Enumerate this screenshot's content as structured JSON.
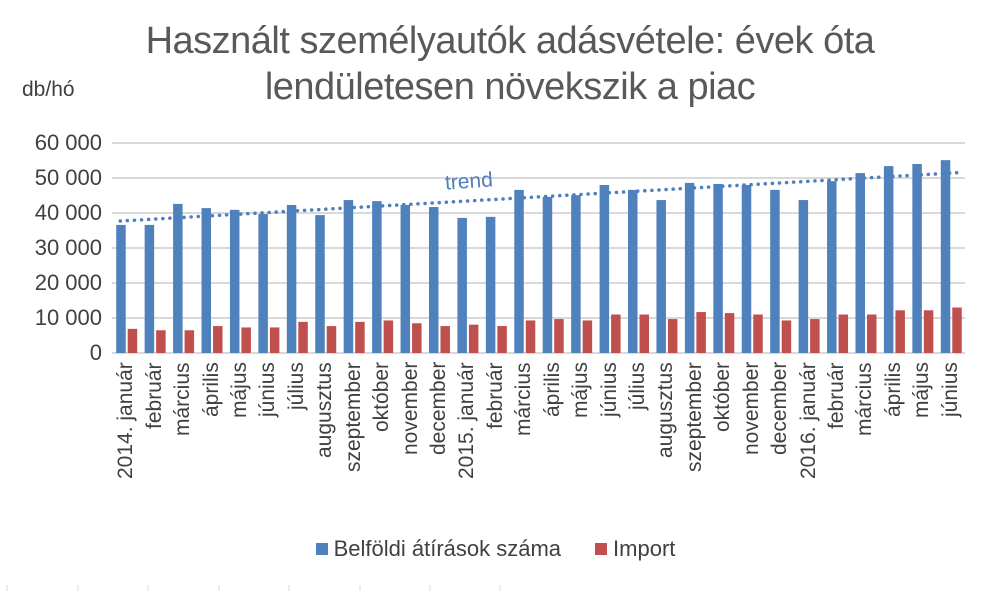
{
  "chart_data": {
    "type": "bar",
    "title": "Használt személyautók adásvétele: évek óta lendületesen növekszik a piac",
    "title_lines": [
      "Használt személyautók adásvétele: évek óta",
      "lendületesen növekszik a piac"
    ],
    "ylabel": "db/hó",
    "xlabel": "",
    "ylim": [
      0,
      60000
    ],
    "yticks": [
      "0",
      "10 000",
      "20 000",
      "30 000",
      "40 000",
      "50 000",
      "60 000"
    ],
    "ytick_values": [
      0,
      10000,
      20000,
      30000,
      40000,
      50000,
      60000
    ],
    "grid": true,
    "legend_position": "bottom",
    "categories": [
      "2014. január",
      "február",
      "március",
      "április",
      "május",
      "június",
      "július",
      "augusztus",
      "szeptember",
      "október",
      "november",
      "december",
      "2015. január",
      "február",
      "március",
      "április",
      "május",
      "június",
      "július",
      "augusztus",
      "szeptember",
      "október",
      "november",
      "december",
      "2016. január",
      "február",
      "március",
      "április",
      "május",
      "június"
    ],
    "series": [
      {
        "name": "Belföldi átírások száma",
        "color": "#4f81bd",
        "values": [
          36600,
          36600,
          42600,
          41400,
          40900,
          39700,
          42300,
          39400,
          43700,
          43400,
          42300,
          41700,
          38600,
          38900,
          46600,
          44600,
          45100,
          48000,
          46600,
          43700,
          48600,
          48300,
          48000,
          46600,
          43700,
          49100,
          51400,
          53400,
          54000,
          55100
        ]
      },
      {
        "name": "Import",
        "color": "#c0504d",
        "values": [
          6900,
          6500,
          6500,
          7700,
          7300,
          7300,
          8900,
          7700,
          8900,
          9300,
          8500,
          7700,
          8100,
          7700,
          9300,
          9700,
          9300,
          11000,
          11000,
          9700,
          11700,
          11400,
          11000,
          9300,
          9700,
          11000,
          11000,
          12200,
          12200,
          13000
        ]
      }
    ],
    "trendline": {
      "label": "trend",
      "series": "Belföldi átírások száma",
      "style": "dotted",
      "start_value": 37700,
      "end_value": 51500
    }
  },
  "legend": {
    "items": [
      {
        "label": "Belföldi átírások száma",
        "color": "#4f81bd"
      },
      {
        "label": "Import",
        "color": "#c0504d"
      }
    ]
  }
}
